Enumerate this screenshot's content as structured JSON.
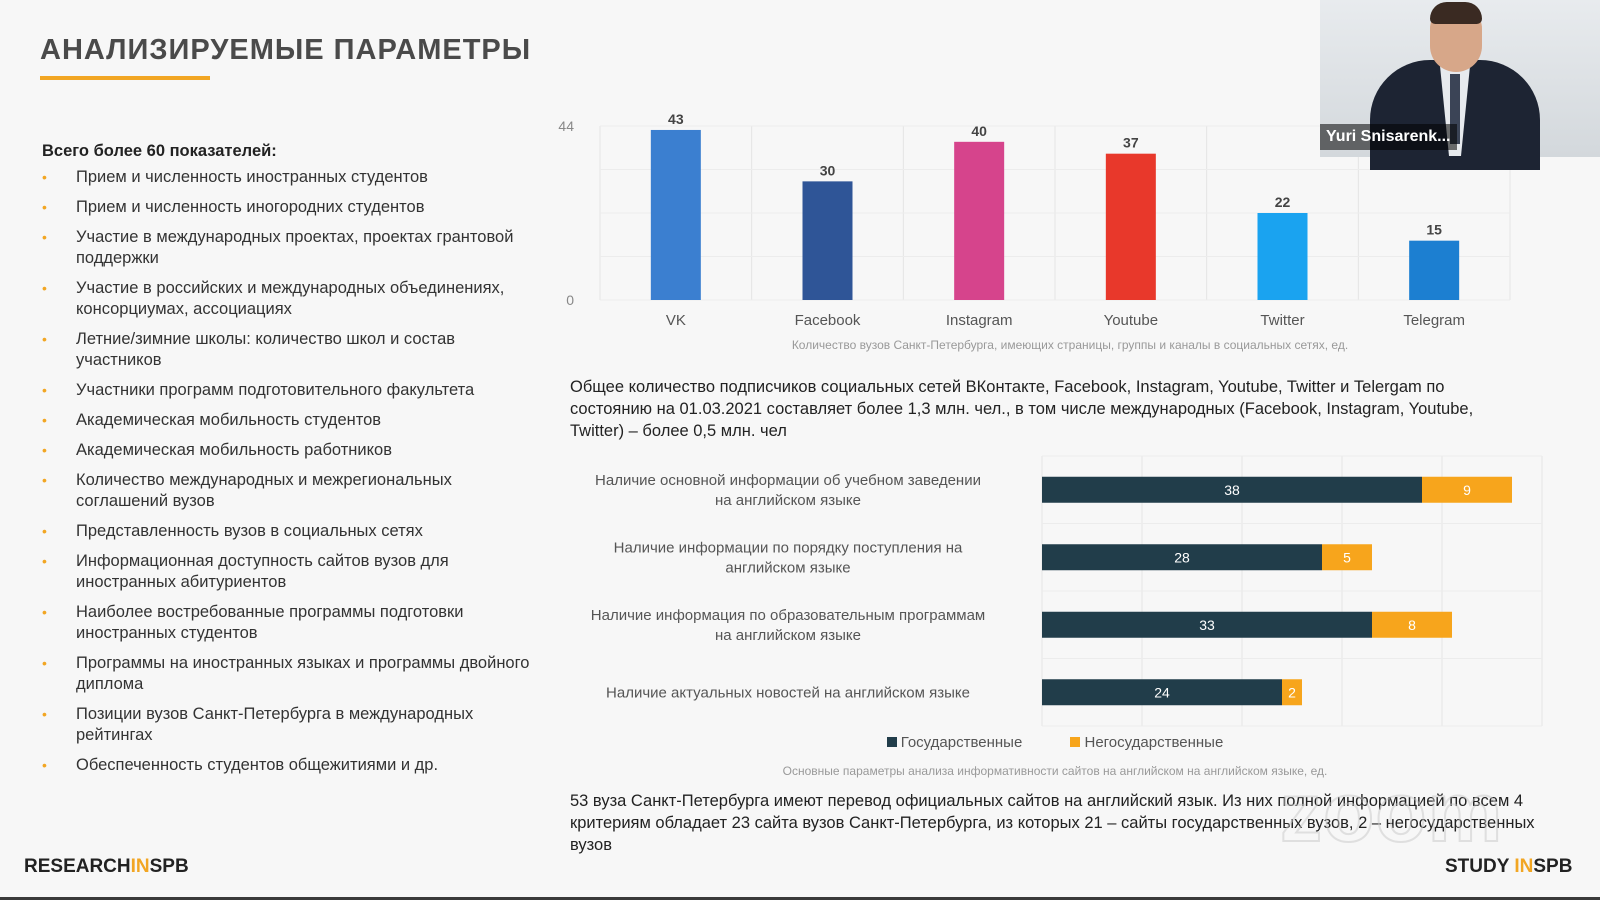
{
  "slide": {
    "title": "АНАЛИЗИРУЕМЫЕ ПАРАМЕТРЫ",
    "accent_color": "#f2a623"
  },
  "params": {
    "heading": "Всего более 60 показателей:",
    "bullet_glyph": "•",
    "items": [
      "Прием и численность иностранных студентов",
      "Прием и численность иногородних студентов",
      "Участие в международных проектах, проектах грантовой поддержки",
      "Участие в российских и международных объединениях, консорциумах, ассоциациях",
      "Летние/зимние школы: количество школ и состав участников",
      "Участники программ подготовительного факультета",
      "Академическая мобильность студентов",
      "Академическая мобильность работников",
      "Количество международных и межрегиональных соглашений вузов",
      "Представленность вузов в социальных сетях",
      "Информационная доступность сайтов вузов для иностранных абитуриентов",
      "Наиболее востребованные программы подготовки иностранных студентов",
      "Программы на иностранных языках и программы двойного диплома",
      "Позиции вузов Санкт-Петербурга в международных рейтингах",
      "Обеспеченность студентов общежитиями и др."
    ]
  },
  "chart_data": [
    {
      "type": "bar",
      "categories": [
        "VK",
        "Facebook",
        "Instagram",
        "Youtube",
        "Twitter",
        "Telegram"
      ],
      "values": [
        43,
        30,
        40,
        37,
        22,
        15
      ],
      "colors": [
        "#3b7fd0",
        "#2f5597",
        "#d6448c",
        "#e8382b",
        "#1aa3f0",
        "#1c7fd1"
      ],
      "ylim": [
        0,
        44
      ],
      "yticks": [
        "0",
        "44"
      ],
      "grid": true,
      "caption": "Количество вузов Санкт-Петербурга, имеющих страницы, группы и каналы в социальных сетях, ед."
    },
    {
      "type": "bar",
      "orientation": "horizontal",
      "stacked": true,
      "categories": [
        "Наличие основной информации об учебном заведении на английском языке",
        "Наличие информации по порядку поступления на английском языке",
        "Наличие информация по образовательным программам на английском языке",
        "Наличие актуальных новостей на английском языке"
      ],
      "series": [
        {
          "name": "Государственные",
          "values": [
            38,
            28,
            33,
            24
          ],
          "color": "#213d4a"
        },
        {
          "name": "Негосударственные",
          "values": [
            9,
            5,
            8,
            2
          ],
          "color": "#f7a51c"
        }
      ],
      "xlim": [
        0,
        50
      ],
      "grid": true,
      "legend_position": "bottom",
      "caption": "Основные параметры анализа информативности сайтов на английском на английском языке, ед."
    }
  ],
  "text": {
    "para1": "Общее количество подписчиков социальных сетей ВКонтакте, Facebook, Instagram, Youtube, Twitter и Telergam по состоянию на 01.03.2021 составляет более 1,3 млн. чел., в том числе международных (Facebook, Instagram, Youtube, Twitter) – более 0,5 млн. чел",
    "para2": "53 вуза Санкт-Петербурга имеют перевод официальных сайтов на английский язык. Из них полной информацией по всем 4 критериям обладает 23 сайта вузов Санкт-Петербурга, из которых 21 – сайты государственных вузов, 2 – негосударственных вузов"
  },
  "video": {
    "participant_name": "Yuri Snisarenk..."
  },
  "watermark": "zoom",
  "logos": {
    "left": {
      "part1": "RESEARCH",
      "part2": "IN",
      "part3": "SPB"
    },
    "right": {
      "part1": "STUDY ",
      "part2": "IN",
      "part3": "SPB"
    }
  }
}
